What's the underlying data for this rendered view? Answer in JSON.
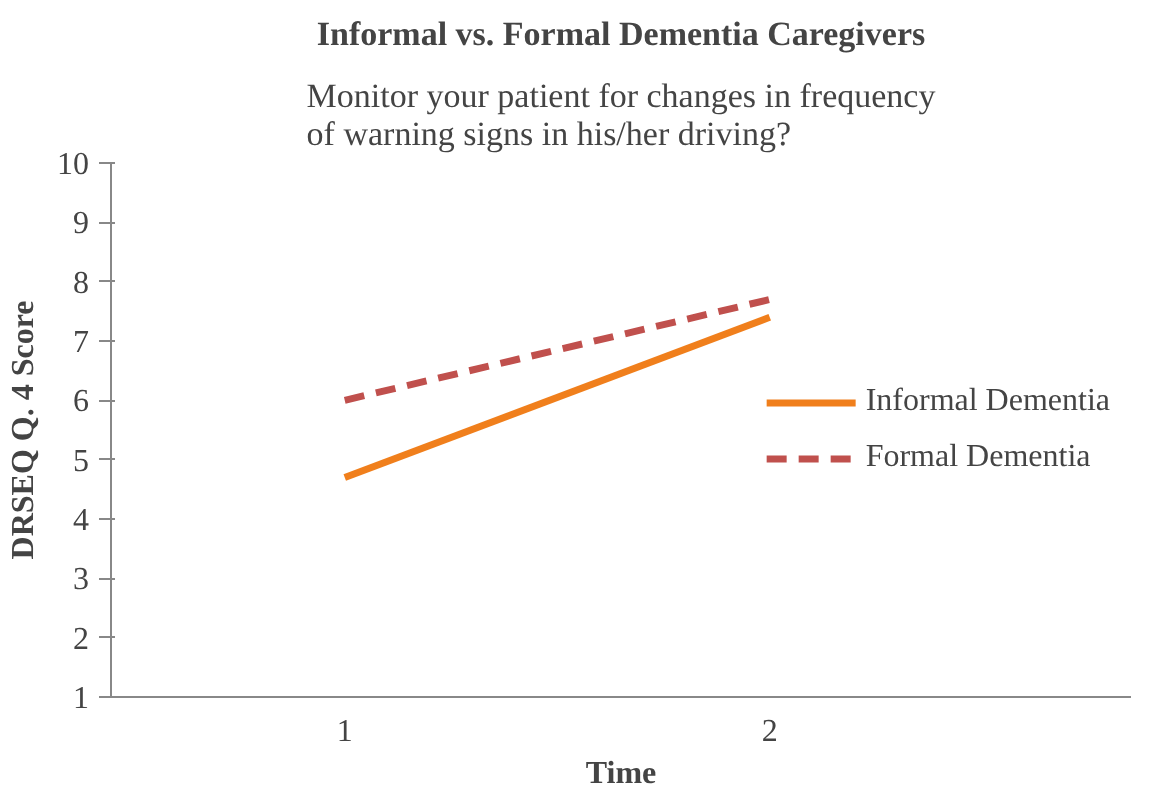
{
  "chart_data": {
    "type": "line",
    "title": "Informal vs. Formal Dementia Caregivers",
    "subtitle": "Monitor your patient for changes in frequency of warning signs in his/her driving?",
    "xlabel": "Time",
    "ylabel": "DRSEQ Q. 4 Score",
    "categories": [
      "1",
      "2"
    ],
    "series": [
      {
        "name": "Informal Dementia",
        "color": "#f07f1c",
        "values": [
          4.7,
          7.4
        ],
        "line_style": "solid"
      },
      {
        "name": "Formal Dementia",
        "color": "#c0504d",
        "values": [
          6.0,
          7.7
        ],
        "line_style": "dashed"
      }
    ],
    "ylim": [
      1,
      10
    ],
    "yticks": [
      1,
      2,
      3,
      4,
      5,
      6,
      7,
      8,
      9,
      10
    ],
    "grid": false,
    "legend": "right",
    "marker": "none"
  }
}
